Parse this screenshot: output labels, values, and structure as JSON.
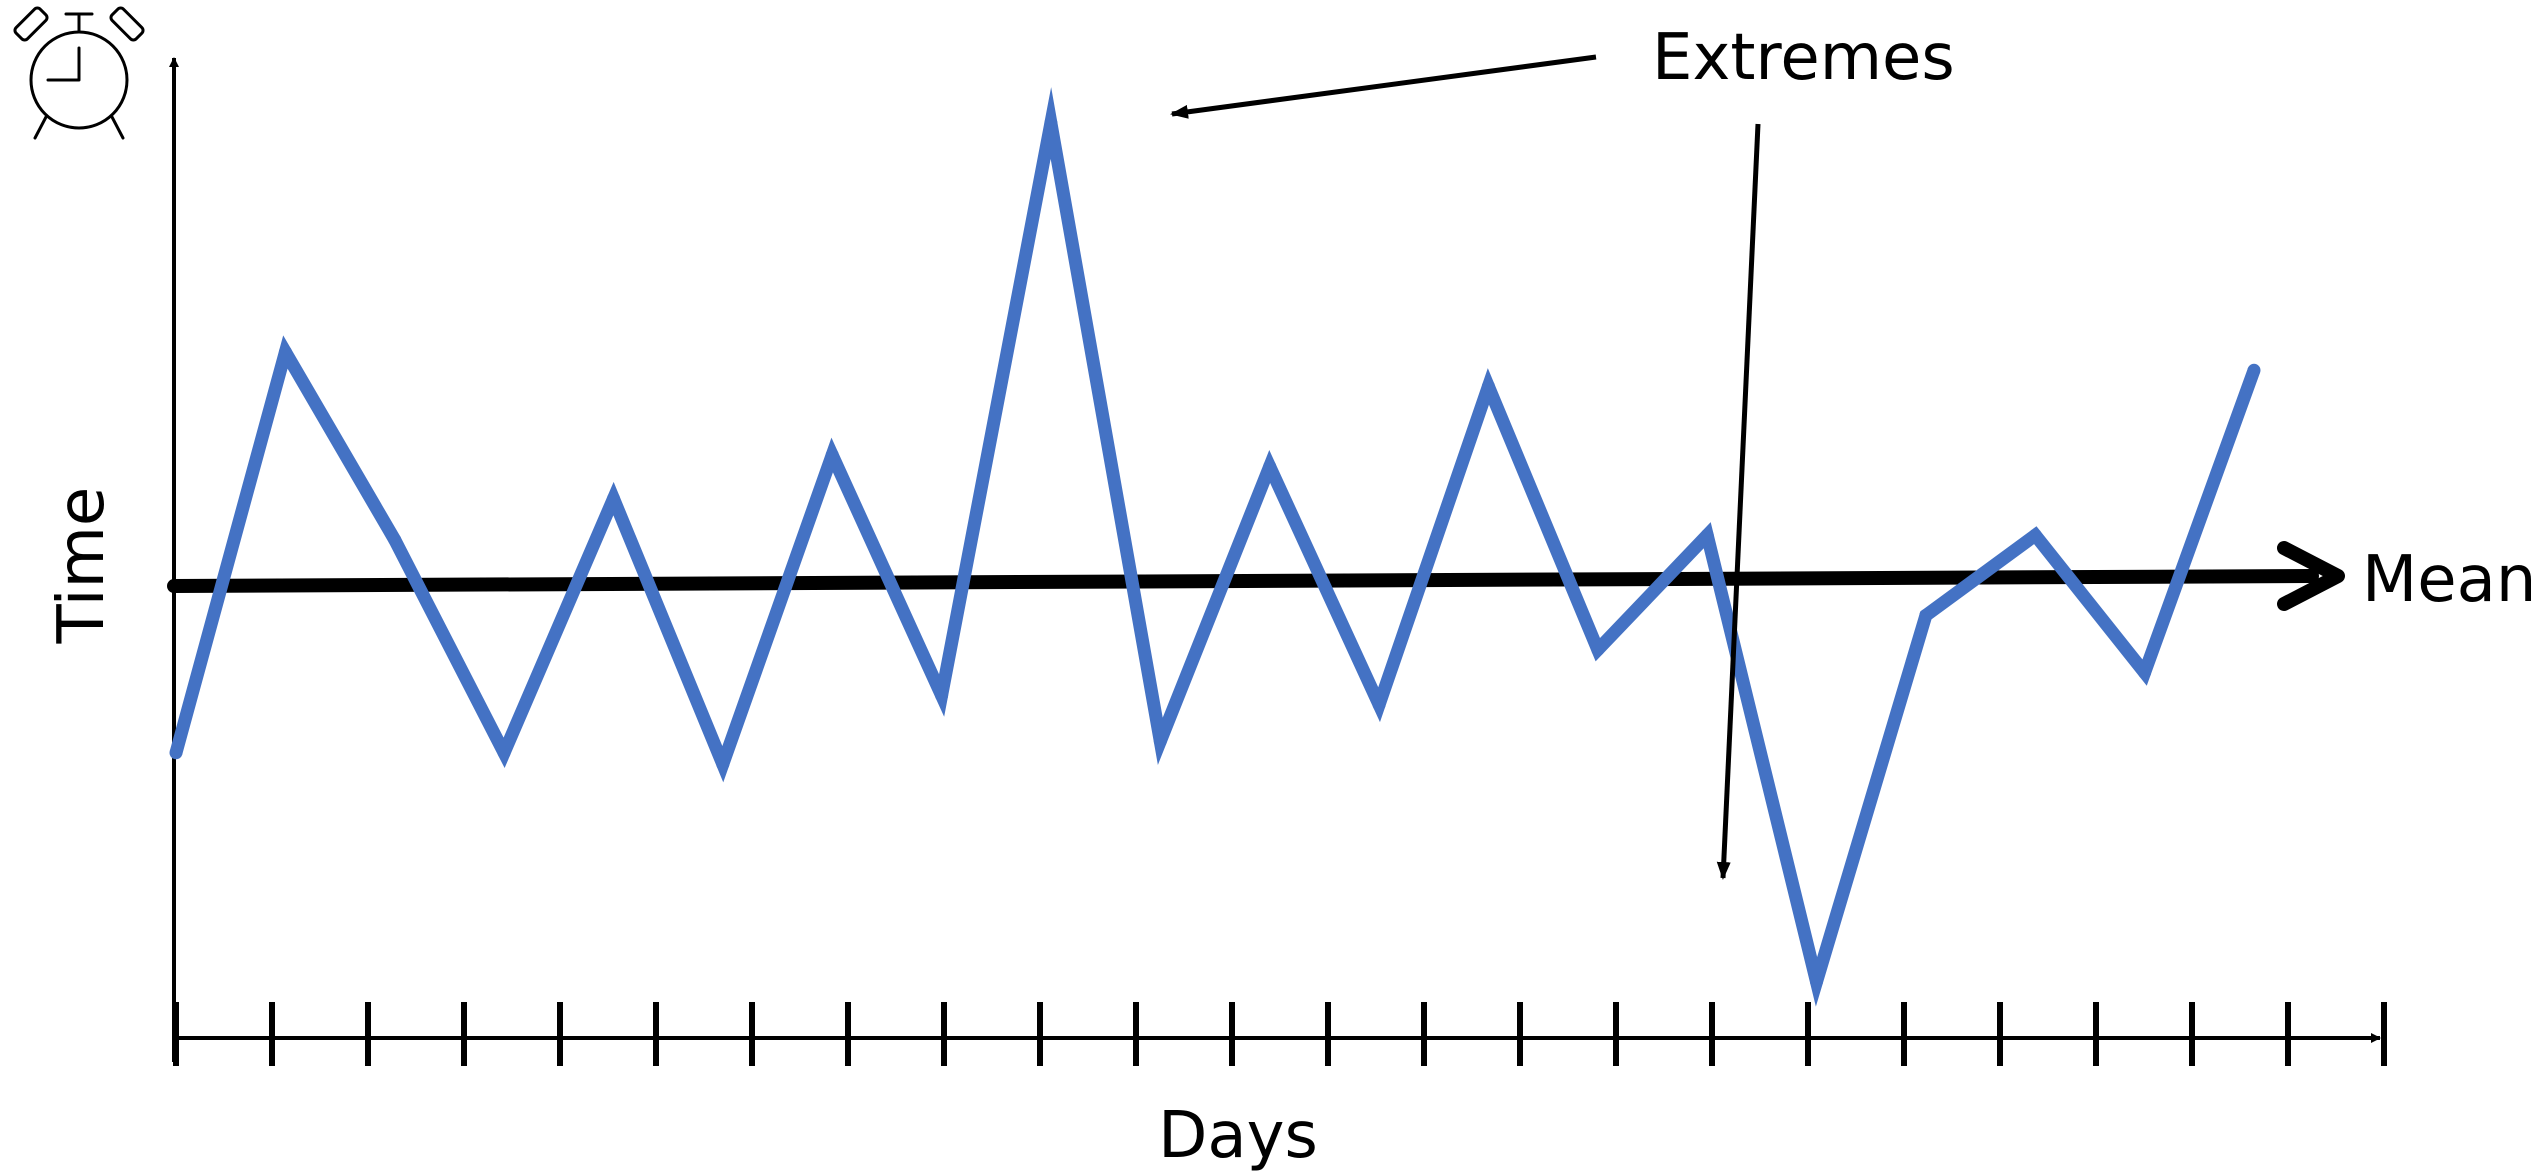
{
  "labels": {
    "y_axis": "Time",
    "x_axis": "Days",
    "mean": "Mean",
    "extremes": "Extremes"
  },
  "icon": "alarm-clock-icon",
  "colors": {
    "series": "#4472C4",
    "axis": "#000000",
    "mean_line": "#000000"
  },
  "chart_data": {
    "type": "line",
    "x_axis_tick_count": 24,
    "series": [
      {
        "values": [
          -0.75,
          1.0,
          0.18,
          -0.75,
          0.36,
          -0.8,
          0.55,
          -0.5,
          2.0,
          -0.7,
          0.5,
          -0.54,
          0.85,
          -0.3,
          0.2,
          -1.75,
          -0.15,
          0.2,
          -0.4,
          0.92
        ]
      }
    ],
    "mean": 0.0,
    "extremes": [
      {
        "index": 8,
        "value": 2.0
      },
      {
        "index": 15,
        "value": -1.75
      }
    ]
  }
}
